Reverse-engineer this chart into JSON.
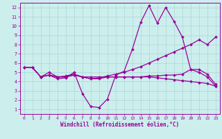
{
  "xlabel": "Windchill (Refroidissement éolien,°C)",
  "bg_color": "#cceeed",
  "grid_color": "#aad8d6",
  "line_color": "#990099",
  "xlim": [
    -0.5,
    23.5
  ],
  "ylim": [
    0.5,
    12.5
  ],
  "xticks": [
    0,
    1,
    2,
    3,
    4,
    5,
    6,
    7,
    8,
    9,
    10,
    11,
    12,
    13,
    14,
    15,
    16,
    17,
    18,
    19,
    20,
    21,
    22,
    23
  ],
  "yticks": [
    1,
    2,
    3,
    4,
    5,
    6,
    7,
    8,
    9,
    10,
    11,
    12
  ],
  "series": [
    {
      "x": [
        0,
        1,
        2,
        3,
        4,
        5,
        6,
        7,
        8,
        9,
        10,
        11,
        12,
        13,
        14,
        15,
        16,
        17,
        18,
        19,
        20,
        21,
        22,
        23
      ],
      "y": [
        5.5,
        5.5,
        4.5,
        4.7,
        4.3,
        4.4,
        5.0,
        2.7,
        1.3,
        1.2,
        2.1,
        4.7,
        5.1,
        7.5,
        10.4,
        12.2,
        10.3,
        12.0,
        10.5,
        8.8,
        5.3,
        5.0,
        4.5,
        3.5
      ]
    },
    {
      "x": [
        0,
        1,
        2,
        3,
        4,
        5,
        6,
        7,
        8,
        9,
        10,
        11,
        12,
        13,
        14,
        15,
        16,
        17,
        18,
        19,
        20,
        21,
        22,
        23
      ],
      "y": [
        5.5,
        5.5,
        4.5,
        5.0,
        4.5,
        4.6,
        4.8,
        4.5,
        4.3,
        4.4,
        4.6,
        4.8,
        5.0,
        5.3,
        5.6,
        6.0,
        6.4,
        6.8,
        7.2,
        7.6,
        8.0,
        8.5,
        8.0,
        8.8
      ]
    },
    {
      "x": [
        0,
        1,
        2,
        3,
        4,
        5,
        6,
        7,
        8,
        9,
        10,
        11,
        12,
        13,
        14,
        15,
        16,
        17,
        18,
        19,
        20,
        21,
        22,
        23
      ],
      "y": [
        5.5,
        5.5,
        4.5,
        4.7,
        4.5,
        4.5,
        4.7,
        4.5,
        4.5,
        4.5,
        4.5,
        4.5,
        4.5,
        4.5,
        4.5,
        4.6,
        4.6,
        4.7,
        4.7,
        4.8,
        5.3,
        5.3,
        4.8,
        3.7
      ]
    },
    {
      "x": [
        0,
        1,
        2,
        3,
        4,
        5,
        6,
        7,
        8,
        9,
        10,
        11,
        12,
        13,
        14,
        15,
        16,
        17,
        18,
        19,
        20,
        21,
        22,
        23
      ],
      "y": [
        5.5,
        5.5,
        4.5,
        4.7,
        4.5,
        4.5,
        4.7,
        4.5,
        4.3,
        4.3,
        4.5,
        4.5,
        4.5,
        4.5,
        4.5,
        4.5,
        4.4,
        4.3,
        4.2,
        4.1,
        4.0,
        3.9,
        3.8,
        3.5
      ]
    }
  ]
}
